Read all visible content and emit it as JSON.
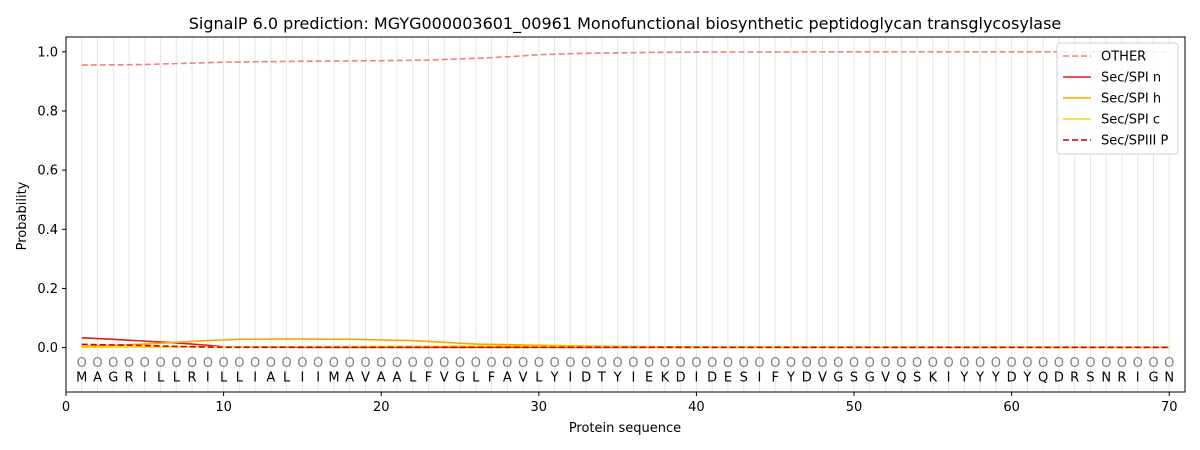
{
  "chart_data": {
    "type": "line",
    "title": "SignalP 6.0 prediction: MGYG000003601_00961 Monofunctional biosynthetic peptidoglycan transglycosylase",
    "xlabel": "Protein sequence",
    "ylabel": "Probability",
    "xlim": [
      0,
      71
    ],
    "ylim": [
      -0.15,
      1.05
    ],
    "x_ticks": [
      0,
      10,
      20,
      30,
      40,
      50,
      60,
      70
    ],
    "y_ticks": [
      0.0,
      0.2,
      0.4,
      0.6,
      0.8,
      1.0
    ],
    "x_tick_labels": [
      "0",
      "10",
      "20",
      "30",
      "40",
      "50",
      "60",
      "70"
    ],
    "y_tick_labels": [
      "0.0",
      "0.2",
      "0.4",
      "0.6",
      "0.8",
      "1.0"
    ],
    "grid": "vertical lines at each residue",
    "legend_position": "top-right",
    "sequence": [
      "M",
      "A",
      "G",
      "R",
      "I",
      "L",
      "L",
      "R",
      "I",
      "L",
      "L",
      "I",
      "A",
      "L",
      "I",
      "I",
      "M",
      "A",
      "V",
      "A",
      "A",
      "L",
      "F",
      "V",
      "G",
      "L",
      "F",
      "A",
      "V",
      "L",
      "Y",
      "I",
      "D",
      "T",
      "Y",
      "I",
      "E",
      "K",
      "D",
      "I",
      "D",
      "E",
      "S",
      "I",
      "F",
      "Y",
      "D",
      "V",
      "G",
      "S",
      "G",
      "V",
      "Q",
      "S",
      "K",
      "I",
      "Y",
      "Y",
      "Y",
      "D",
      "Y",
      "Q",
      "D",
      "R",
      "S",
      "N",
      "R",
      "I",
      "G",
      "N"
    ],
    "region_labels": [
      "O",
      "O",
      "O",
      "O",
      "O",
      "O",
      "O",
      "O",
      "O",
      "O",
      "O",
      "O",
      "O",
      "O",
      "O",
      "O",
      "O",
      "O",
      "O",
      "O",
      "O",
      "O",
      "O",
      "O",
      "O",
      "O",
      "O",
      "O",
      "O",
      "O",
      "O",
      "O",
      "O",
      "O",
      "O",
      "O",
      "O",
      "O",
      "O",
      "O",
      "O",
      "O",
      "O",
      "O",
      "O",
      "O",
      "O",
      "O",
      "O",
      "O",
      "O",
      "O",
      "O",
      "O",
      "O",
      "O",
      "O",
      "O",
      "O",
      "O",
      "O",
      "O",
      "O",
      "O",
      "O",
      "O",
      "O",
      "O",
      "O",
      "O"
    ],
    "series": [
      {
        "name": "OTHER",
        "color": "#f08080",
        "dash": "dashed",
        "x": [
          1,
          5,
          7,
          10,
          15,
          20,
          23,
          26,
          28,
          30,
          33,
          37,
          40,
          50,
          60,
          70
        ],
        "values": [
          0.955,
          0.957,
          0.96,
          0.965,
          0.968,
          0.97,
          0.972,
          0.978,
          0.983,
          0.99,
          0.995,
          0.998,
          0.999,
          1.0,
          1.0,
          1.0
        ]
      },
      {
        "name": "Sec/SPI n",
        "color": "#e41a1c",
        "dash": "solid",
        "x": [
          1,
          3,
          5,
          7,
          9,
          10,
          15,
          70
        ],
        "values": [
          0.033,
          0.028,
          0.022,
          0.016,
          0.008,
          0.003,
          0.001,
          0.001
        ]
      },
      {
        "name": "Sec/SPI h",
        "color": "#ffa500",
        "dash": "solid",
        "x": [
          1,
          3,
          5,
          7,
          9,
          11,
          14,
          18,
          22,
          24,
          26,
          30,
          35,
          40,
          70
        ],
        "values": [
          0.005,
          0.008,
          0.012,
          0.018,
          0.024,
          0.028,
          0.029,
          0.028,
          0.024,
          0.018,
          0.012,
          0.008,
          0.004,
          0.002,
          0.001
        ]
      },
      {
        "name": "Sec/SPI c",
        "color": "#ffd700",
        "dash": "solid",
        "x": [
          1,
          5,
          10,
          15,
          20,
          25,
          30,
          35,
          40,
          70
        ],
        "values": [
          0.001,
          0.002,
          0.003,
          0.003,
          0.004,
          0.005,
          0.004,
          0.003,
          0.001,
          0.001
        ]
      },
      {
        "name": "Sec/SPIII P",
        "color": "#cc0000",
        "dash": "dashed",
        "x": [
          1,
          3,
          5,
          7,
          9,
          10,
          70
        ],
        "values": [
          0.011,
          0.009,
          0.007,
          0.004,
          0.002,
          0.001,
          0.001
        ]
      }
    ]
  }
}
